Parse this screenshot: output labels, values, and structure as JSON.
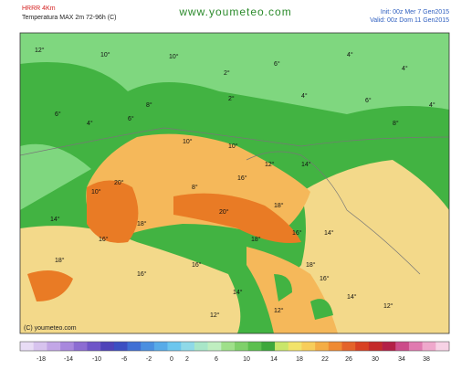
{
  "header": {
    "model": "HRRR 4Km",
    "title": "Temperatura MAX 2m 72-96h (C)",
    "site": "www.youmeteo.com",
    "init": "Init: 00z Mer 7 Gen2015",
    "valid": "Valid: 00z Dom 11 Gen2015"
  },
  "map": {
    "copyright": "(C) youmeteo.com",
    "labels": [
      "12°",
      "10°",
      "10°",
      "6°",
      "4°",
      "2°",
      "4°",
      "6°",
      "4°",
      "6°",
      "8°",
      "2°",
      "4°",
      "6°",
      "8°",
      "10°",
      "10°",
      "12°",
      "14°",
      "16°",
      "20°",
      "18°",
      "16°",
      "18°",
      "20°",
      "18°",
      "16°",
      "14°",
      "16°",
      "18°",
      "18°",
      "14°",
      "12°",
      "16°",
      "14°",
      "12°",
      "10°",
      "14°",
      "12°",
      "16°",
      "8°",
      "4°"
    ]
  },
  "colorbar": {
    "labels": [
      "-18",
      "-14",
      "-10",
      "-6",
      "-2",
      "0",
      "2",
      "6",
      "10",
      "14",
      "18",
      "22",
      "26",
      "30",
      "34",
      "38"
    ]
  }
}
